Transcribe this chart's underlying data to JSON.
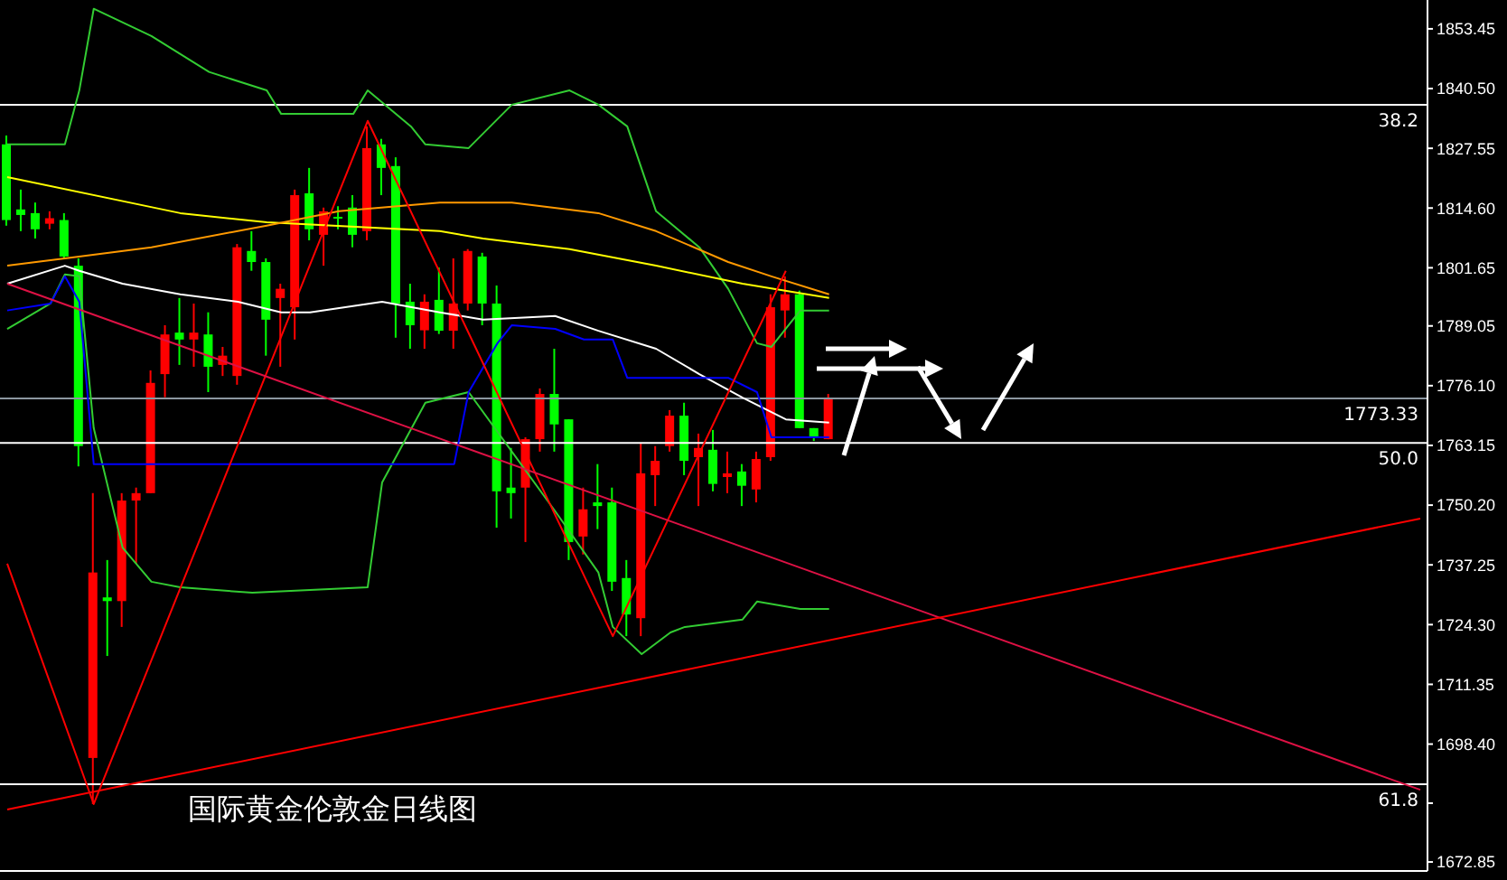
{
  "chart_data": {
    "type": "candlestick",
    "title": "国际黄金伦敦金日线图",
    "categories": [
      null,
      null,
      null,
      null,
      null,
      null,
      null,
      null,
      null,
      null,
      null,
      null,
      null,
      null,
      null,
      null,
      null,
      null,
      null,
      null,
      null,
      null,
      null,
      null,
      null,
      null,
      null,
      null,
      null,
      null,
      null,
      null,
      null,
      null,
      null,
      null,
      null,
      null,
      null,
      null,
      null,
      null,
      null,
      null,
      null,
      null,
      null,
      null,
      null,
      null,
      null,
      null,
      null,
      null,
      null,
      null,
      null,
      null,
      null,
      null,
      null,
      null,
      null,
      null,
      null,
      null,
      null,
      null,
      null,
      null,
      null,
      null,
      null,
      null,
      null,
      null,
      null,
      null,
      null,
      null,
      null,
      null,
      null,
      null,
      null,
      null,
      null,
      null,
      null,
      null,
      null,
      null,
      null,
      null,
      null,
      null,
      null,
      null,
      null
    ],
    "ohlc": [
      [
        1828.4,
        1830.3,
        1810.8,
        1812.0
      ],
      [
        1814.3,
        1818.6,
        1809.6,
        1813.1
      ],
      [
        1813.5,
        1815.8,
        1808.0,
        1810.0
      ],
      [
        1811.2,
        1813.9,
        1810.0,
        1812.4
      ],
      [
        1812.0,
        1813.5,
        1803.7,
        1804.1
      ],
      [
        1802.1,
        1803.7,
        1758.6,
        1763.0
      ],
      [
        1695.4,
        1752.8,
        1685.4,
        1735.6
      ],
      [
        1730.2,
        1738.3,
        1717.5,
        1729.4
      ],
      [
        1729.4,
        1752.8,
        1723.8,
        1751.2
      ],
      [
        1751.2,
        1754.0,
        1737.5,
        1752.8
      ],
      [
        1752.8,
        1779.4,
        1752.8,
        1776.7
      ],
      [
        1778.6,
        1789.2,
        1773.6,
        1787.2
      ],
      [
        1787.6,
        1795.1,
        1780.6,
        1786.1
      ],
      [
        1786.1,
        1793.9,
        1780.2,
        1787.6
      ],
      [
        1787.2,
        1792.0,
        1774.7,
        1780.2
      ],
      [
        1780.6,
        1784.5,
        1778.2,
        1782.6
      ],
      [
        1778.2,
        1806.8,
        1776.3,
        1806.1
      ],
      [
        1805.3,
        1809.6,
        1801.0,
        1802.9
      ],
      [
        1802.9,
        1803.7,
        1782.6,
        1790.4
      ],
      [
        1795.1,
        1798.2,
        1780.2,
        1797.1
      ],
      [
        1793.1,
        1818.6,
        1786.1,
        1817.4
      ],
      [
        1817.8,
        1823.3,
        1807.6,
        1810.0
      ],
      [
        1808.8,
        1814.7,
        1802.1,
        1813.9
      ],
      [
        1812.7,
        1815.0,
        1810.0,
        1812.4
      ],
      [
        1814.7,
        1817.4,
        1806.1,
        1808.8
      ],
      [
        1809.6,
        1832.3,
        1807.6,
        1827.6
      ],
      [
        1828.4,
        1829.6,
        1817.4,
        1823.3
      ],
      [
        1823.7,
        1825.6,
        1786.5,
        1793.9
      ],
      [
        1794.3,
        1798.2,
        1784.1,
        1789.2
      ],
      [
        1788.1,
        1795.9,
        1784.1,
        1794.3
      ],
      [
        1794.7,
        1801.7,
        1787.3,
        1788.0
      ],
      [
        1788.0,
        1803.7,
        1784.1,
        1793.9
      ],
      [
        1793.9,
        1805.7,
        1792.4,
        1805.3
      ],
      [
        1804.1,
        1804.9,
        1789.2,
        1793.9
      ],
      [
        1793.9,
        1797.8,
        1745.3,
        1753.2
      ],
      [
        1754.0,
        1762.6,
        1747.3,
        1752.8
      ],
      [
        1754.0,
        1764.9,
        1742.2,
        1764.5
      ],
      [
        1764.5,
        1775.5,
        1761.8,
        1774.3
      ],
      [
        1774.3,
        1784.1,
        1761.8,
        1767.7
      ],
      [
        1768.8,
        1768.8,
        1738.3,
        1742.2
      ],
      [
        1743.4,
        1754.0,
        1739.5,
        1749.3
      ],
      [
        1750.8,
        1759.1,
        1745.0,
        1750.0
      ],
      [
        1750.8,
        1754.0,
        1731.6,
        1733.6
      ],
      [
        1734.4,
        1738.3,
        1721.8,
        1726.5
      ],
      [
        1725.7,
        1763.7,
        1721.8,
        1757.1
      ],
      [
        1756.7,
        1763.0,
        1750.0,
        1759.8
      ],
      [
        1763.0,
        1770.8,
        1761.8,
        1769.6
      ],
      [
        1769.6,
        1772.4,
        1756.7,
        1759.8
      ],
      [
        1760.6,
        1765.7,
        1750.0,
        1762.6
      ],
      [
        1762.2,
        1766.5,
        1753.2,
        1754.8
      ],
      [
        1756.3,
        1761.8,
        1752.8,
        1757.1
      ],
      [
        1757.5,
        1759.1,
        1750.0,
        1754.4
      ],
      [
        1753.6,
        1761.8,
        1750.8,
        1760.2
      ],
      [
        1760.6,
        1795.9,
        1759.8,
        1793.1
      ],
      [
        1792.4,
        1799.8,
        1786.5,
        1795.9
      ],
      [
        1795.9,
        1796.7,
        1766.9,
        1766.9
      ],
      [
        1766.9,
        1766.9,
        1764.1,
        1764.9
      ],
      [
        1764.5,
        1774.3,
        1764.5,
        1773.33
      ],
      null,
      null,
      null,
      null,
      null,
      null,
      null,
      null,
      null,
      null,
      null,
      null,
      null,
      null,
      null,
      null,
      null,
      null,
      null,
      null,
      null,
      null,
      null,
      null,
      null,
      null,
      null,
      null,
      null,
      null,
      null,
      null,
      null,
      null,
      null,
      null,
      null,
      null,
      null,
      null,
      null
    ],
    "colors": [
      "#00ff00",
      "#00ff00",
      "#00ff00",
      "#ff0000",
      "#00ff00",
      "#00ff00",
      "#ff0000",
      "#00ff00",
      "#ff0000",
      "#ff0000",
      "#ff0000",
      "#ff0000",
      "#00ff00",
      "#ff0000",
      "#00ff00",
      "#ff0000",
      "#ff0000",
      "#00ff00",
      "#00ff00",
      "#ff0000",
      "#ff0000",
      "#00ff00",
      "#ff0000",
      "#00ff00",
      "#00ff00",
      "#ff0000",
      "#00ff00",
      "#00ff00",
      "#00ff00",
      "#ff0000",
      "#00ff00",
      "#ff0000",
      "#ff0000",
      "#00ff00",
      "#00ff00",
      "#00ff00",
      "#ff0000",
      "#ff0000",
      "#00ff00",
      "#00ff00",
      "#ff0000",
      "#00ff00",
      "#00ff00",
      "#00ff00",
      "#ff0000",
      "#ff0000",
      "#ff0000",
      "#00ff00",
      "#ff0000",
      "#00ff00",
      "#ff0000",
      "#00ff00",
      "#ff0000",
      "#ff0000",
      "#ff0000",
      "#00ff00",
      "#00ff00",
      "#ff0000",
      null,
      null,
      null,
      null,
      null,
      null,
      null,
      null,
      null,
      null,
      null,
      null,
      null,
      null,
      null,
      null,
      null,
      null,
      null,
      null,
      null,
      null,
      null,
      null,
      null,
      null,
      null,
      null,
      null,
      null,
      null,
      null,
      null,
      null,
      null,
      null,
      null,
      null,
      null,
      null,
      null
    ],
    "series": [
      {
        "type": "line",
        "color": "#33cc33",
        "values": [
          1828.4,
          null,
          null,
          null,
          1828.4,
          1840.1,
          1857.8,
          null,
          null,
          null,
          1851.9,
          null,
          null,
          null,
          1844.1,
          null,
          null,
          null,
          1840.1,
          1835.0,
          null,
          null,
          null,
          null,
          1835.0,
          1840.1,
          null,
          null,
          1832.3,
          1828.4,
          null,
          null,
          1827.6,
          null,
          null,
          1837.0,
          null,
          null,
          null,
          1840.1,
          null,
          1837.0,
          null,
          1832.3,
          null,
          1813.9,
          null,
          null,
          1806.1,
          null,
          1797.1,
          null,
          1785.3,
          1784.5,
          null,
          1792.4,
          null,
          1792.4,
          null,
          null,
          null,
          null,
          null,
          null,
          null,
          null,
          null,
          null,
          null,
          null,
          null,
          null,
          null,
          null,
          null,
          null,
          null,
          null,
          null,
          null,
          null,
          null,
          null,
          null,
          null,
          null,
          null,
          null,
          null,
          null,
          null,
          null,
          null,
          null,
          null,
          null,
          null,
          null,
          null
        ]
      },
      {
        "type": "line",
        "color": "#33cc33",
        "values": [
          1788.4,
          null,
          null,
          1793.9,
          1800.2,
          1799.8,
          1766.9,
          null,
          1741.0,
          null,
          1733.6,
          null,
          1732.4,
          null,
          null,
          null,
          null,
          1731.2,
          null,
          null,
          null,
          null,
          null,
          null,
          null,
          1732.4,
          1755.1,
          null,
          null,
          1772.4,
          null,
          null,
          1774.7,
          null,
          null,
          1761.8,
          null,
          null,
          1748.9,
          null,
          null,
          1735.6,
          1723.8,
          null,
          1717.9,
          null,
          1722.6,
          1723.8,
          null,
          null,
          null,
          1725.4,
          1729.3,
          null,
          null,
          1727.7,
          null,
          1727.7,
          null,
          null,
          null,
          null,
          null,
          null,
          null,
          null,
          null,
          null,
          null,
          null,
          null,
          null,
          null,
          null,
          null,
          null,
          null,
          null,
          null,
          null,
          null,
          null,
          null,
          null,
          null,
          null,
          null,
          null,
          null,
          null,
          null,
          null,
          null,
          null,
          null,
          null,
          null,
          null,
          null
        ]
      },
      {
        "type": "line",
        "color": "#ffffff",
        "values": [
          1798.2,
          null,
          null,
          null,
          1802.1,
          1801.0,
          null,
          null,
          1798.2,
          null,
          null,
          null,
          1795.9,
          null,
          null,
          null,
          1794.3,
          null,
          null,
          1792.0,
          null,
          1792.0,
          null,
          null,
          null,
          null,
          1794.3,
          null,
          null,
          null,
          1792.0,
          null,
          null,
          1790.4,
          null,
          null,
          null,
          null,
          1791.2,
          null,
          null,
          1788.0,
          null,
          null,
          null,
          1784.1,
          null,
          null,
          1778.6,
          null,
          null,
          1773.5,
          null,
          null,
          1768.8,
          null,
          null,
          1768.1,
          null,
          null,
          null,
          null,
          null,
          null,
          null,
          null,
          null,
          null,
          null,
          null,
          null,
          null,
          null,
          null,
          null,
          null,
          null,
          null,
          null,
          null,
          null,
          null,
          null,
          null,
          null,
          null,
          null,
          null,
          null,
          null,
          null,
          null,
          null,
          null,
          null,
          null,
          null,
          null,
          null
        ]
      },
      {
        "type": "line",
        "color": "#ffff00",
        "values": [
          1821.3,
          null,
          null,
          null,
          null,
          null,
          null,
          null,
          null,
          null,
          null,
          null,
          1813.5,
          null,
          null,
          null,
          null,
          null,
          1811.5,
          null,
          null,
          null,
          null,
          null,
          null,
          null,
          null,
          null,
          null,
          null,
          1809.6,
          null,
          null,
          1808.0,
          null,
          null,
          null,
          null,
          null,
          1805.7,
          null,
          null,
          null,
          null,
          null,
          1802.1,
          null,
          null,
          null,
          null,
          null,
          1798.2,
          null,
          null,
          null,
          null,
          null,
          1795.1,
          null,
          null,
          null,
          null,
          null,
          null,
          null,
          null,
          null,
          null,
          null,
          null,
          null,
          null,
          null,
          null,
          null,
          null,
          null,
          null,
          null,
          null,
          null,
          null,
          null,
          null,
          null,
          null,
          null,
          null,
          null,
          null,
          null,
          null,
          null,
          null,
          null,
          null,
          null,
          null,
          null
        ]
      },
      {
        "type": "line",
        "color": "#ff9900",
        "values": [
          1802.1,
          null,
          null,
          null,
          1803.7,
          null,
          null,
          null,
          null,
          null,
          1806.1,
          null,
          null,
          null,
          null,
          null,
          null,
          null,
          1810.8,
          null,
          null,
          null,
          null,
          1813.9,
          null,
          null,
          null,
          null,
          null,
          null,
          1815.8,
          null,
          null,
          null,
          null,
          1815.8,
          null,
          null,
          null,
          null,
          null,
          1813.5,
          null,
          null,
          null,
          1809.6,
          null,
          null,
          null,
          null,
          1802.9,
          null,
          null,
          1799.8,
          null,
          null,
          null,
          1795.9,
          null,
          null,
          null,
          null,
          null,
          null,
          null,
          null,
          null,
          null,
          null,
          null,
          null,
          null,
          null,
          null,
          null,
          null,
          null,
          null,
          null,
          null,
          null,
          null,
          null,
          null,
          null,
          null,
          null,
          null,
          null,
          null,
          null,
          null,
          null,
          null,
          null,
          null,
          null,
          null,
          null
        ]
      },
      {
        "type": "line",
        "color": "#0000ff",
        "values": [
          1792.4,
          null,
          null,
          1793.9,
          1799.8,
          1794.3,
          1759.1,
          null,
          null,
          null,
          null,
          null,
          null,
          null,
          null,
          null,
          null,
          null,
          null,
          null,
          null,
          null,
          null,
          null,
          null,
          null,
          null,
          null,
          null,
          null,
          null,
          1759.1,
          1774.7,
          null,
          1785.3,
          1789.2,
          null,
          null,
          1788.4,
          null,
          1786.1,
          null,
          1786.1,
          1777.8,
          null,
          null,
          null,
          null,
          null,
          null,
          1777.8,
          null,
          1774.7,
          1764.9,
          null,
          null,
          null,
          1764.9,
          null,
          null,
          null,
          null,
          null,
          null,
          null,
          null,
          null,
          null,
          null,
          null,
          null,
          null,
          null,
          null,
          null,
          null,
          null,
          null,
          null,
          null,
          null,
          null,
          null,
          null,
          null,
          null,
          null,
          null,
          null,
          null,
          null,
          null,
          null,
          null,
          null,
          null,
          null,
          null,
          null
        ]
      },
      {
        "type": "line",
        "color": "#ff0000",
        "values": [
          1737.5,
          null,
          null,
          null,
          null,
          null,
          1685.4,
          null,
          null,
          null,
          null,
          null,
          null,
          null,
          null,
          null,
          null,
          null,
          null,
          null,
          null,
          null,
          null,
          null,
          null,
          1833.5,
          null,
          null,
          null,
          null,
          null,
          null,
          null,
          null,
          null,
          null,
          null,
          null,
          null,
          null,
          null,
          null,
          1721.8,
          null,
          null,
          null,
          null,
          null,
          null,
          null,
          null,
          null,
          null,
          null,
          1801.0,
          null,
          null,
          null,
          null,
          null,
          null,
          null,
          null,
          null,
          null,
          null,
          null,
          null,
          null,
          null,
          null,
          null,
          null,
          null,
          null,
          null,
          null,
          null,
          null,
          null,
          null,
          null,
          null,
          null,
          null,
          null,
          null,
          null,
          null,
          null,
          null,
          null,
          null,
          null,
          null,
          null,
          null,
          null,
          null
        ]
      },
      {
        "type": "line",
        "color": "#dd1144",
        "values": [
          1798.2,
          null,
          null,
          null,
          null,
          null,
          null,
          null,
          null,
          null,
          null,
          null,
          null,
          null,
          null,
          null,
          null,
          null,
          null,
          null,
          null,
          null,
          null,
          null,
          null,
          null,
          null,
          null,
          null,
          null,
          null,
          null,
          null,
          null,
          null,
          null,
          null,
          null,
          null,
          null,
          null,
          null,
          null,
          null,
          null,
          null,
          null,
          null,
          null,
          null,
          null,
          null,
          null,
          null,
          null,
          null,
          null,
          null,
          null,
          null,
          null,
          null,
          null,
          null,
          null,
          null,
          null,
          null,
          null,
          null,
          null,
          null,
          null,
          null,
          null,
          null,
          null,
          null,
          null,
          null,
          null,
          null,
          null,
          null,
          null,
          null,
          null,
          null,
          null,
          null,
          null,
          null,
          null,
          null,
          null,
          null,
          null,
          null,
          1688.5
        ]
      },
      {
        "type": "line",
        "color": "#ff0000",
        "values": [
          1684.2,
          null,
          null,
          null,
          null,
          null,
          null,
          null,
          null,
          null,
          null,
          null,
          null,
          null,
          null,
          null,
          null,
          null,
          null,
          null,
          null,
          null,
          null,
          null,
          null,
          null,
          null,
          null,
          null,
          null,
          null,
          null,
          null,
          null,
          null,
          null,
          null,
          null,
          null,
          null,
          null,
          null,
          null,
          null,
          null,
          null,
          null,
          null,
          null,
          null,
          null,
          null,
          null,
          null,
          null,
          null,
          null,
          null,
          null,
          null,
          null,
          null,
          null,
          null,
          null,
          null,
          null,
          null,
          null,
          null,
          null,
          null,
          null,
          null,
          null,
          null,
          null,
          null,
          null,
          null,
          null,
          null,
          null,
          null,
          null,
          null,
          null,
          null,
          null,
          null,
          null,
          null,
          null,
          null,
          null,
          null,
          null,
          null,
          1747.3
        ]
      }
    ],
    "ylim": [
      1670.9,
      1859.7
    ],
    "yticks": [
      1853.45,
      {
        "value": 1840.5,
        "label": "1840.50"
      },
      1827.55,
      {
        "value": 1814.6,
        "label": "1814.60"
      },
      1801.65,
      1789.05,
      {
        "value": 1776.1,
        "label": "1776.10"
      },
      1763.15,
      {
        "value": 1750.2,
        "label": "1750.20"
      },
      1737.25,
      {
        "value": 1724.3,
        "label": "1724.30"
      },
      1711.35,
      {
        "value": 1698.4,
        "label": "1698.40"
      },
      {
        "value": 1685.6,
        "label": null
      },
      1672.85
    ],
    "ref_lines": [
      {
        "axis": "y",
        "value": 1837.0,
        "color": "#ffffff"
      },
      {
        "axis": "y",
        "value": 1773.33,
        "label": "1773.33",
        "color": "#8c96a0"
      },
      {
        "axis": "y",
        "value": 1763.7,
        "color": "#ffffff"
      },
      {
        "axis": "y",
        "value": 1689.7,
        "color": "#ffffff"
      }
    ],
    "annotations": [
      {
        "text": "38.2",
        "y": 1837.0
      },
      {
        "text": "50.0",
        "y": 1763.7
      },
      {
        "text": "61.8",
        "y": 1689.7
      }
    ],
    "tick_labels": "y",
    "grid": false,
    "legend": false
  }
}
